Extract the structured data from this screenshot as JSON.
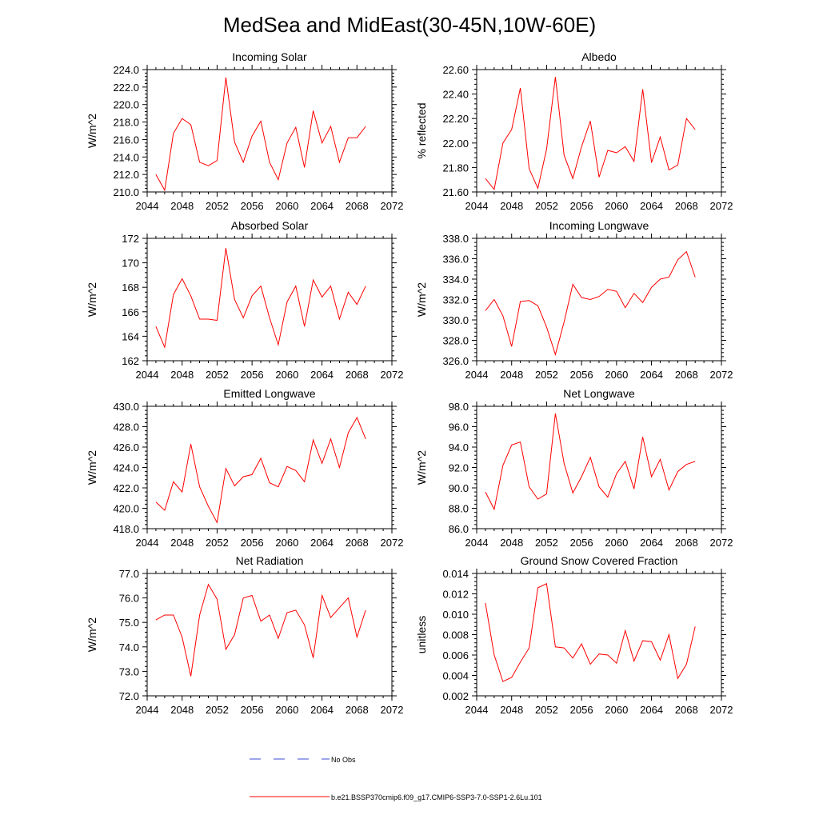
{
  "title": "MedSea and MidEast(30-45N,10W-60E)",
  "legend": {
    "obs_label": "No Obs",
    "obs_color": "#3b4bd6",
    "model_label": "b.e21.BSSP370cmip6.f09_g17.CMIP6-SSP3-7.0-SSP1-2.6Lu.101",
    "model_color": "#ff0000"
  },
  "chart_data": [
    {
      "type": "line",
      "title": "Incoming Solar",
      "ylabel": "W/m^2",
      "xlim": [
        2044,
        2072
      ],
      "xticks": [
        "2044",
        "2048",
        "2052",
        "2056",
        "2060",
        "2064",
        "2068",
        "2072"
      ],
      "ylim": [
        210,
        224
      ],
      "yticks": [
        "210.0",
        "212.0",
        "214.0",
        "216.0",
        "218.0",
        "220.0",
        "222.0",
        "224.0"
      ],
      "x": [
        2045,
        2046,
        2047,
        2048,
        2049,
        2050,
        2051,
        2052,
        2053,
        2054,
        2055,
        2056,
        2057,
        2058,
        2059,
        2060,
        2061,
        2062,
        2063,
        2064,
        2065,
        2066,
        2067,
        2068,
        2069
      ],
      "series": [
        {
          "values": [
            212.0,
            210.2,
            216.7,
            218.4,
            217.7,
            213.4,
            213.0,
            213.6,
            223.1,
            215.7,
            213.4,
            216.4,
            218.1,
            213.4,
            211.4,
            215.6,
            217.4,
            212.8,
            219.3,
            215.6,
            217.5,
            213.4,
            216.2,
            216.2,
            217.5
          ]
        }
      ]
    },
    {
      "type": "line",
      "title": "Albedo",
      "ylabel": "% reflected",
      "xlim": [
        2044,
        2072
      ],
      "xticks": [
        "2044",
        "2048",
        "2052",
        "2056",
        "2060",
        "2064",
        "2068",
        "2072"
      ],
      "ylim": [
        21.6,
        22.6
      ],
      "yticks": [
        "21.60",
        "21.80",
        "22.00",
        "22.20",
        "22.40",
        "22.60"
      ],
      "x": [
        2045,
        2046,
        2047,
        2048,
        2049,
        2050,
        2051,
        2052,
        2053,
        2054,
        2055,
        2056,
        2057,
        2058,
        2059,
        2060,
        2061,
        2062,
        2063,
        2064,
        2065,
        2066,
        2067,
        2068,
        2069
      ],
      "series": [
        {
          "values": [
            21.71,
            21.62,
            22.0,
            22.11,
            22.45,
            21.79,
            21.63,
            21.95,
            22.54,
            21.9,
            21.71,
            21.97,
            22.18,
            21.72,
            21.94,
            21.92,
            21.97,
            21.85,
            22.44,
            21.84,
            22.05,
            21.78,
            21.82,
            22.2,
            22.11
          ]
        }
      ]
    },
    {
      "type": "line",
      "title": "Absorbed Solar",
      "ylabel": "W/m^2",
      "xlim": [
        2044,
        2072
      ],
      "xticks": [
        "2044",
        "2048",
        "2052",
        "2056",
        "2060",
        "2064",
        "2068",
        "2072"
      ],
      "ylim": [
        162,
        172
      ],
      "yticks": [
        "162",
        "164",
        "166",
        "168",
        "170",
        "172"
      ],
      "x": [
        2045,
        2046,
        2047,
        2048,
        2049,
        2050,
        2051,
        2052,
        2053,
        2054,
        2055,
        2056,
        2057,
        2058,
        2059,
        2060,
        2061,
        2062,
        2063,
        2064,
        2065,
        2066,
        2067,
        2068,
        2069
      ],
      "series": [
        {
          "values": [
            164.8,
            163.1,
            167.4,
            168.7,
            167.3,
            165.4,
            165.4,
            165.3,
            171.2,
            167.0,
            165.5,
            167.3,
            168.1,
            165.5,
            163.3,
            166.8,
            168.1,
            164.8,
            168.6,
            167.2,
            168.1,
            165.4,
            167.6,
            166.6,
            168.1
          ]
        }
      ]
    },
    {
      "type": "line",
      "title": "Incoming Longwave",
      "ylabel": "W/m^2",
      "xlim": [
        2044,
        2072
      ],
      "xticks": [
        "2044",
        "2048",
        "2052",
        "2056",
        "2060",
        "2064",
        "2068",
        "2072"
      ],
      "ylim": [
        326,
        338
      ],
      "yticks": [
        "326.0",
        "328.0",
        "330.0",
        "332.0",
        "334.0",
        "336.0",
        "338.0"
      ],
      "x": [
        2045,
        2046,
        2047,
        2048,
        2049,
        2050,
        2051,
        2052,
        2053,
        2054,
        2055,
        2056,
        2057,
        2058,
        2059,
        2060,
        2061,
        2062,
        2063,
        2064,
        2065,
        2066,
        2067,
        2068,
        2069
      ],
      "series": [
        {
          "values": [
            330.9,
            332.0,
            330.4,
            327.4,
            331.8,
            331.9,
            331.4,
            329.3,
            326.6,
            329.8,
            333.5,
            332.2,
            332.0,
            332.3,
            333.0,
            332.8,
            331.2,
            332.6,
            331.7,
            333.2,
            334.0,
            334.2,
            335.9,
            336.7,
            334.2
          ]
        }
      ]
    },
    {
      "type": "line",
      "title": "Emitted Longwave",
      "ylabel": "W/m^2",
      "xlim": [
        2044,
        2072
      ],
      "xticks": [
        "2044",
        "2048",
        "2052",
        "2056",
        "2060",
        "2064",
        "2068",
        "2072"
      ],
      "ylim": [
        418,
        430
      ],
      "yticks": [
        "418.0",
        "420.0",
        "422.0",
        "424.0",
        "426.0",
        "428.0",
        "430.0"
      ],
      "x": [
        2045,
        2046,
        2047,
        2048,
        2049,
        2050,
        2051,
        2052,
        2053,
        2054,
        2055,
        2056,
        2057,
        2058,
        2059,
        2060,
        2061,
        2062,
        2063,
        2064,
        2065,
        2066,
        2067,
        2068,
        2069
      ],
      "series": [
        {
          "values": [
            420.6,
            419.8,
            422.6,
            421.6,
            426.3,
            422.1,
            420.2,
            418.6,
            423.9,
            422.2,
            423.1,
            423.3,
            424.9,
            422.5,
            422.1,
            424.1,
            423.7,
            422.6,
            426.7,
            424.4,
            426.8,
            424.0,
            427.4,
            428.9,
            426.8
          ]
        }
      ]
    },
    {
      "type": "line",
      "title": "Net Longwave",
      "ylabel": "W/m^2",
      "xlim": [
        2044,
        2072
      ],
      "xticks": [
        "2044",
        "2048",
        "2052",
        "2056",
        "2060",
        "2064",
        "2068",
        "2072"
      ],
      "ylim": [
        86,
        98
      ],
      "yticks": [
        "86.0",
        "88.0",
        "90.0",
        "92.0",
        "94.0",
        "96.0",
        "98.0"
      ],
      "x": [
        2045,
        2046,
        2047,
        2048,
        2049,
        2050,
        2051,
        2052,
        2053,
        2054,
        2055,
        2056,
        2057,
        2058,
        2059,
        2060,
        2061,
        2062,
        2063,
        2064,
        2065,
        2066,
        2067,
        2068,
        2069
      ],
      "series": [
        {
          "values": [
            89.6,
            87.9,
            92.2,
            94.2,
            94.5,
            90.1,
            88.9,
            89.4,
            97.3,
            92.4,
            89.5,
            91.1,
            93.0,
            90.1,
            89.1,
            91.4,
            92.6,
            89.9,
            95.0,
            91.1,
            92.8,
            89.8,
            91.6,
            92.3,
            92.6
          ]
        }
      ]
    },
    {
      "type": "line",
      "title": "Net Radiation",
      "ylabel": "W/m^2",
      "xlim": [
        2044,
        2072
      ],
      "xticks": [
        "2044",
        "2048",
        "2052",
        "2056",
        "2060",
        "2064",
        "2068",
        "2072"
      ],
      "ylim": [
        72,
        77
      ],
      "yticks": [
        "72.0",
        "73.0",
        "74.0",
        "75.0",
        "76.0",
        "77.0"
      ],
      "x": [
        2045,
        2046,
        2047,
        2048,
        2049,
        2050,
        2051,
        2052,
        2053,
        2054,
        2055,
        2056,
        2057,
        2058,
        2059,
        2060,
        2061,
        2062,
        2063,
        2064,
        2065,
        2066,
        2067,
        2068,
        2069
      ],
      "series": [
        {
          "values": [
            75.1,
            75.3,
            75.3,
            74.4,
            72.8,
            75.3,
            76.55,
            75.95,
            73.9,
            74.5,
            76.0,
            76.1,
            75.05,
            75.3,
            74.35,
            75.4,
            75.5,
            74.9,
            73.55,
            76.1,
            75.2,
            75.6,
            76.0,
            74.4,
            75.5
          ]
        }
      ]
    },
    {
      "type": "line",
      "title": "Ground Snow Covered Fraction",
      "ylabel": "unitless",
      "xlim": [
        2044,
        2072
      ],
      "xticks": [
        "2044",
        "2048",
        "2052",
        "2056",
        "2060",
        "2064",
        "2068",
        "2072"
      ],
      "ylim": [
        0.002,
        0.014
      ],
      "yticks": [
        "0.002",
        "0.004",
        "0.006",
        "0.008",
        "0.010",
        "0.012",
        "0.014"
      ],
      "x": [
        2045,
        2046,
        2047,
        2048,
        2049,
        2050,
        2051,
        2052,
        2053,
        2054,
        2055,
        2056,
        2057,
        2058,
        2059,
        2060,
        2061,
        2062,
        2063,
        2064,
        2065,
        2066,
        2067,
        2068,
        2069
      ],
      "series": [
        {
          "values": [
            0.0111,
            0.006,
            0.0034,
            0.0038,
            0.0053,
            0.0067,
            0.0126,
            0.013,
            0.0068,
            0.0067,
            0.0057,
            0.0071,
            0.0051,
            0.0061,
            0.006,
            0.0052,
            0.0084,
            0.0054,
            0.0074,
            0.0073,
            0.0055,
            0.008,
            0.0037,
            0.0051,
            0.0088
          ]
        }
      ]
    }
  ]
}
